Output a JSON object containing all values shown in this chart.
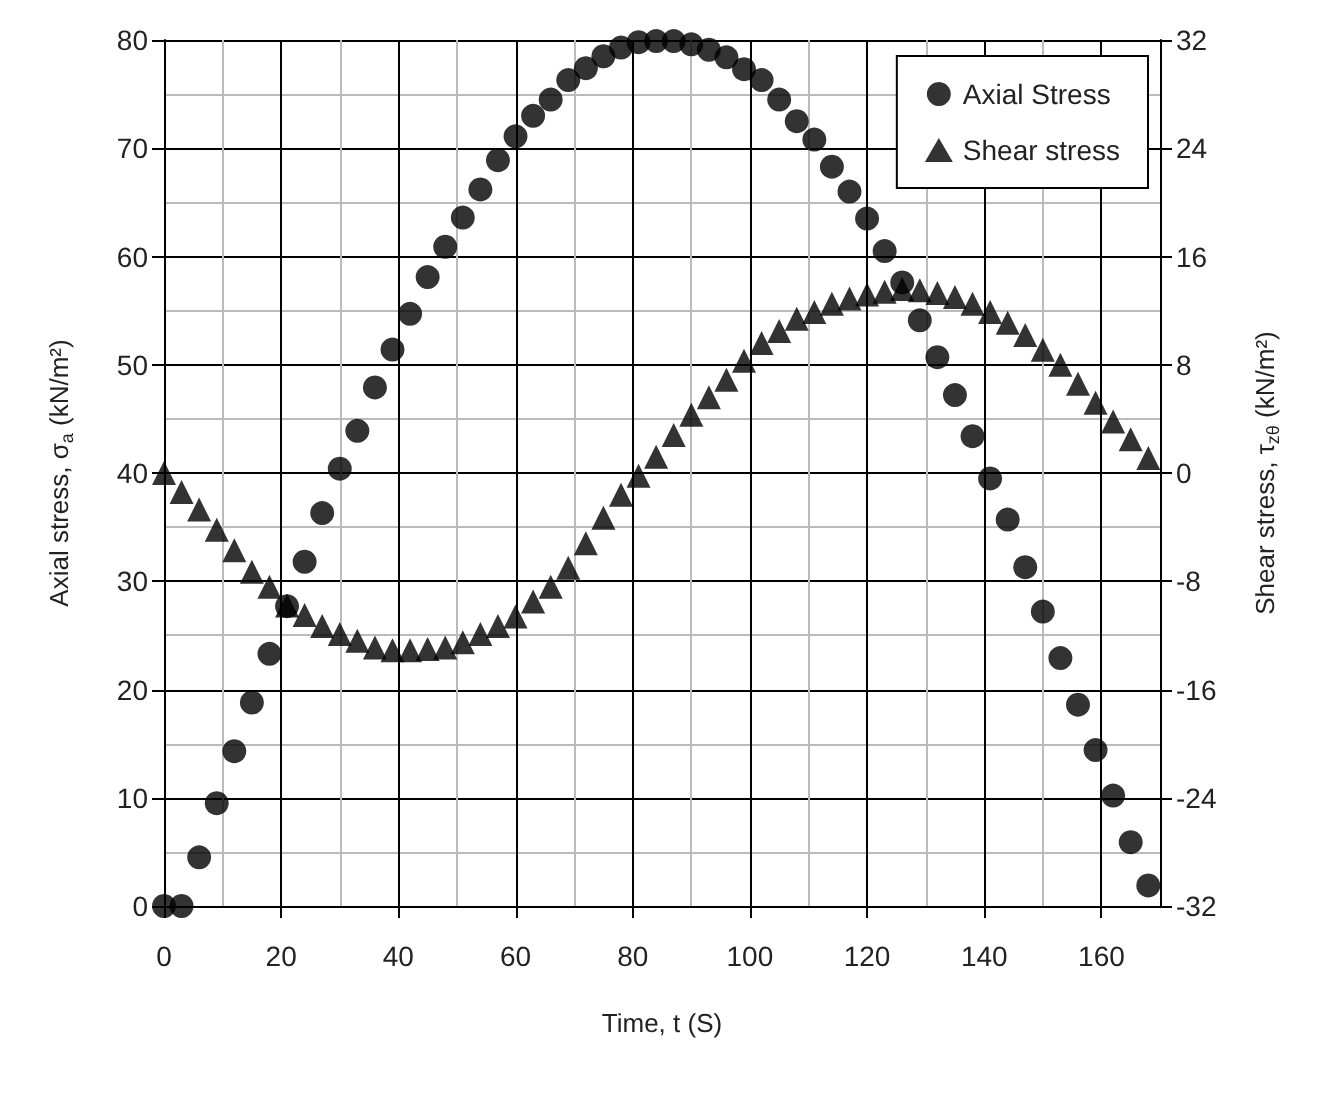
{
  "chart_data": {
    "type": "scatter",
    "xlabel": "Time, t (S)",
    "ylabel": "Axial stress, σ$_{a}$ (kN/m²)",
    "y2label": "Shear stress, τ$_{zθ}$ (kN/m²)",
    "x": [
      0,
      3,
      6,
      9,
      12,
      15,
      18,
      21,
      24,
      27,
      30,
      33,
      36,
      39,
      42,
      45,
      48,
      51,
      54,
      57,
      60,
      63,
      66,
      69,
      72,
      75,
      78,
      81,
      84,
      87,
      90,
      93,
      96,
      99,
      102,
      105,
      108,
      111,
      114,
      117,
      120,
      123,
      126,
      129,
      132,
      135,
      138,
      141,
      144,
      147,
      150,
      153,
      156,
      159,
      162,
      165,
      168
    ],
    "series": [
      {
        "name": "Axial Stress",
        "color": "#000000",
        "marker": "circle",
        "values": [
          0,
          0,
          4.5,
          9.5,
          14.3,
          18.8,
          23.3,
          27.7,
          31.8,
          36.3,
          40.4,
          43.9,
          47.9,
          51.4,
          54.7,
          58.1,
          60.9,
          63.6,
          66.2,
          68.9,
          71.1,
          73.0,
          74.5,
          76.3,
          77.4,
          78.5,
          79.3,
          79.8,
          79.9,
          79.9,
          79.6,
          79.1,
          78.4,
          77.3,
          76.3,
          74.5,
          72.5,
          70.8,
          68.3,
          66.0,
          63.5,
          60.5,
          57.6,
          54.1,
          50.7,
          47.2,
          43.4,
          39.5,
          35.7,
          31.3,
          27.2,
          22.9,
          18.6,
          14.4,
          10.2,
          5.9,
          1.9
        ]
      },
      {
        "name": "Shear stress",
        "color": "#000000",
        "marker": "triangle",
        "axis": "y2",
        "values": [
          0,
          -1.4,
          -2.7,
          -4.2,
          -5.7,
          -7.3,
          -8.4,
          -9.8,
          -10.5,
          -11.3,
          -11.9,
          -12.4,
          -12.9,
          -13.1,
          -13.1,
          -13.0,
          -12.9,
          -12.5,
          -11.9,
          -11.3,
          -10.6,
          -9.5,
          -8.4,
          -7.0,
          -5.2,
          -3.3,
          -1.6,
          -0.2,
          1.2,
          2.8,
          4.3,
          5.6,
          6.9,
          8.3,
          9.6,
          10.5,
          11.4,
          11.9,
          12.5,
          12.9,
          13.2,
          13.4,
          13.6,
          13.5,
          13.3,
          13.0,
          12.5,
          11.9,
          11.1,
          10.2,
          9.1,
          8.0,
          6.6,
          5.2,
          3.8,
          2.5,
          1.1
        ]
      }
    ],
    "xlim": [
      0,
      170
    ],
    "xticks": [
      0,
      20,
      40,
      60,
      80,
      100,
      120,
      140,
      160
    ],
    "ylim": [
      0,
      80
    ],
    "yticks": [
      0,
      10,
      20,
      30,
      40,
      50,
      60,
      70,
      80
    ],
    "y2lim": [
      -32,
      32
    ],
    "y2ticks": [
      -32,
      -24,
      -16,
      -8,
      0,
      8,
      16,
      24,
      32
    ],
    "grid": true,
    "legend": "top right"
  }
}
